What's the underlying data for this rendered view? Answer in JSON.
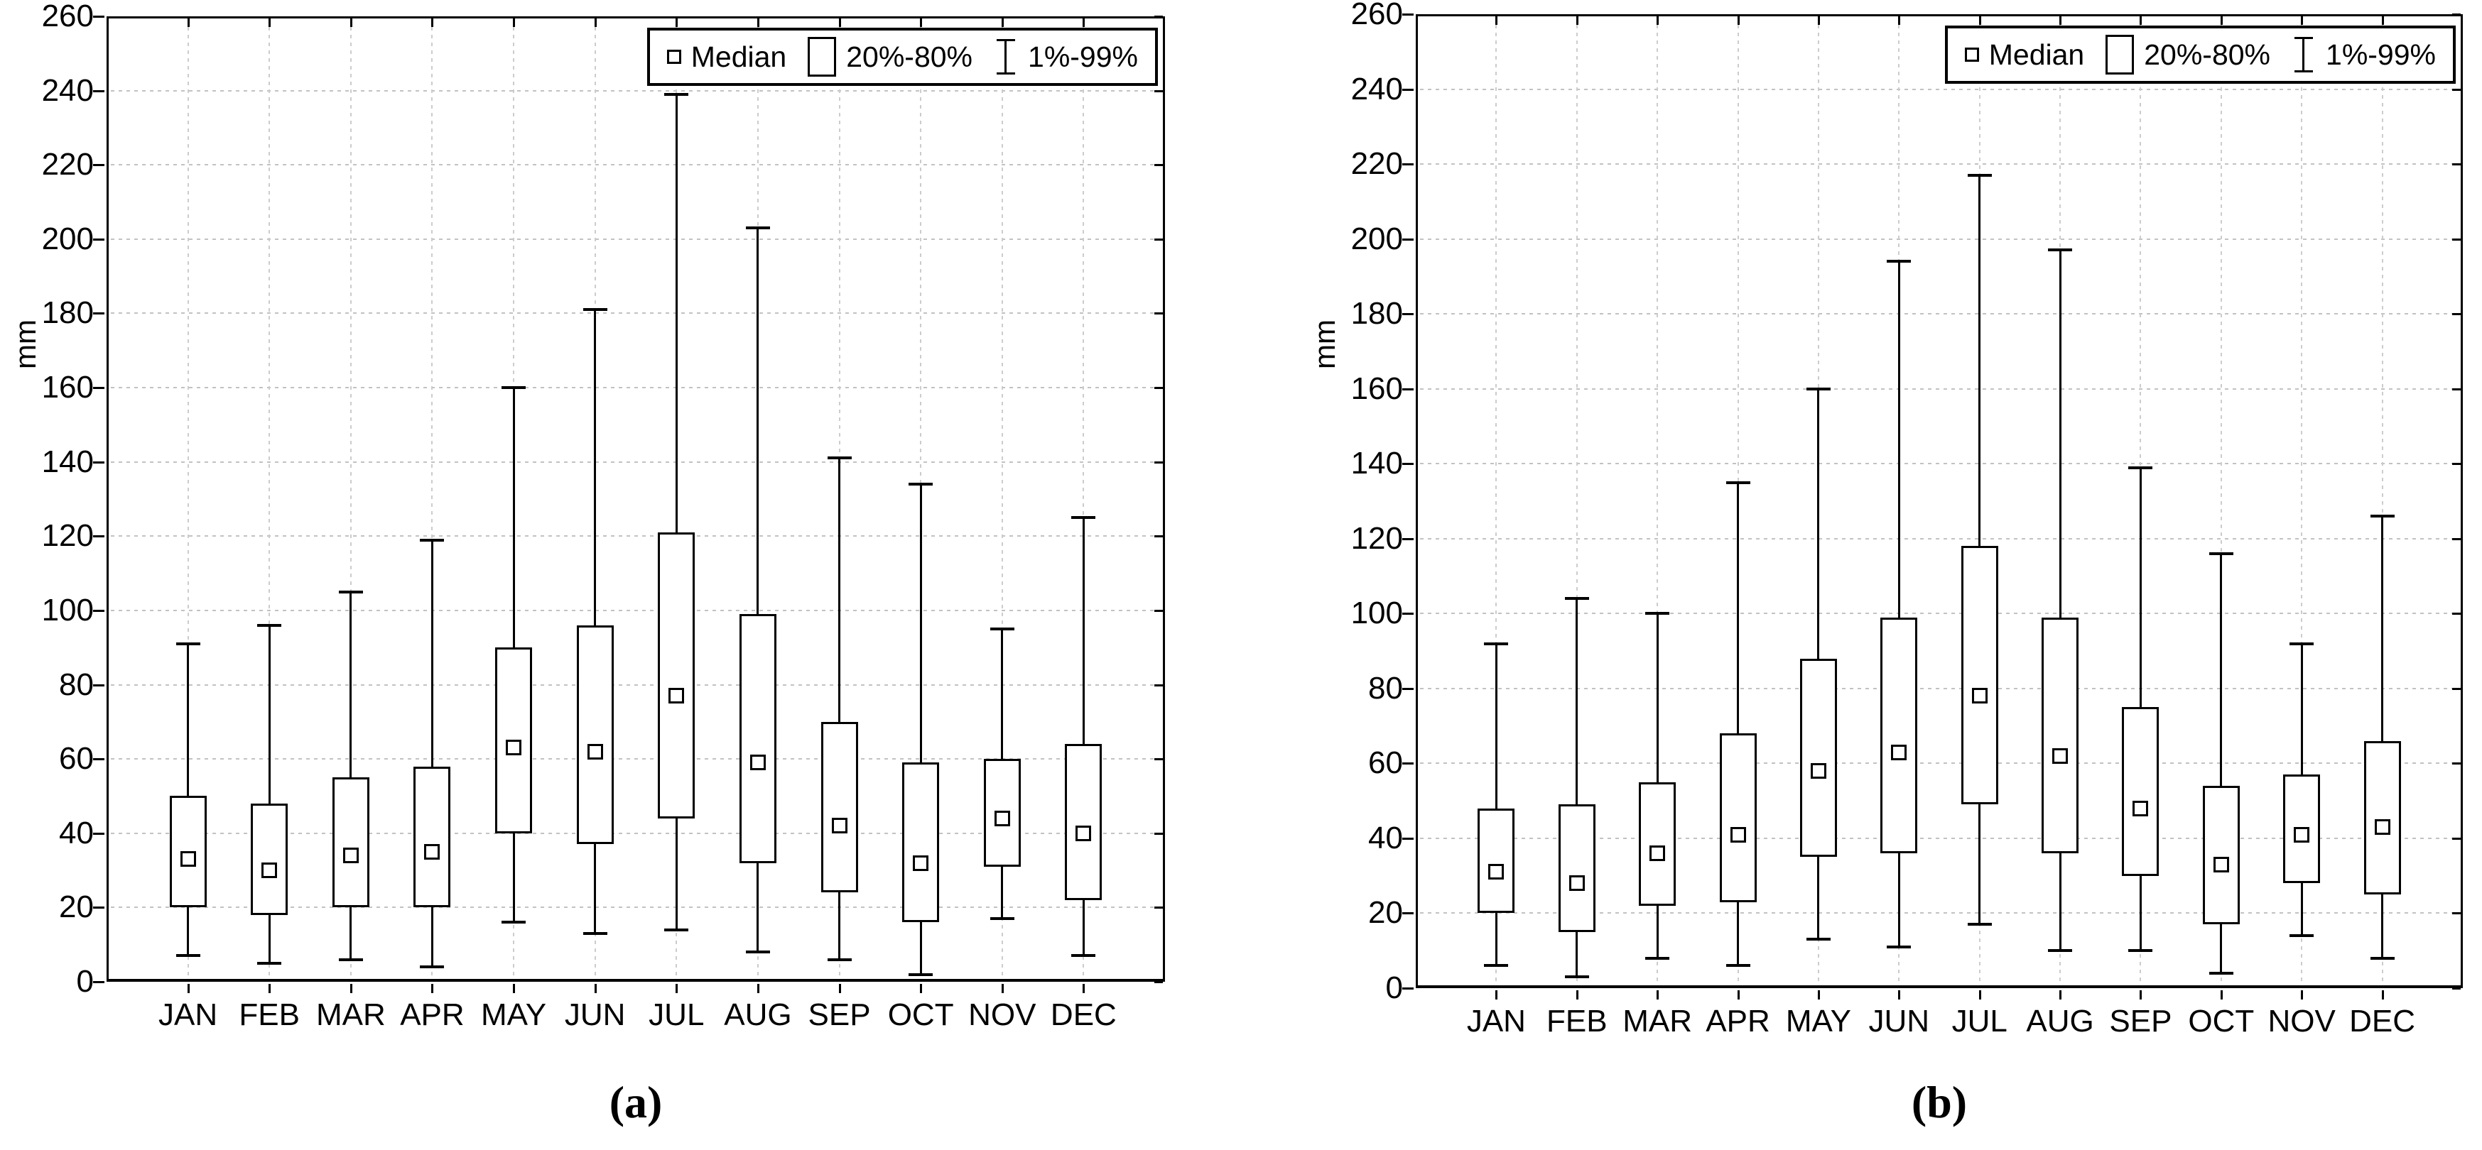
{
  "figure_captions": [
    "(a)",
    "(b)"
  ],
  "axis_unit": "mm",
  "legend": {
    "median_label": "Median",
    "box_label": "20%-80%",
    "whisker_label": "1%-99%"
  },
  "chart_data": [
    {
      "type": "boxplot",
      "caption": "(a)",
      "ylabel": "mm",
      "ylim": [
        0,
        260
      ],
      "ytick_step": 20,
      "grid": true,
      "legend_position": "top-right",
      "legend_entries": [
        "Median",
        "20%-80%",
        "1%-99%"
      ],
      "box_range": "20%-80%",
      "whisker_range": "1%-99%",
      "categories": [
        "JAN",
        "FEB",
        "MAR",
        "APR",
        "MAY",
        "JUN",
        "JUL",
        "AUG",
        "SEP",
        "OCT",
        "NOV",
        "DEC"
      ],
      "series": [
        {
          "month": "JAN",
          "p1": 7,
          "p20": 20,
          "median": 33,
          "p80": 50,
          "p99": 91
        },
        {
          "month": "FEB",
          "p1": 5,
          "p20": 18,
          "median": 30,
          "p80": 48,
          "p99": 96
        },
        {
          "month": "MAR",
          "p1": 6,
          "p20": 20,
          "median": 34,
          "p80": 55,
          "p99": 105
        },
        {
          "month": "APR",
          "p1": 4,
          "p20": 20,
          "median": 35,
          "p80": 58,
          "p99": 119
        },
        {
          "month": "MAY",
          "p1": 16,
          "p20": 40,
          "median": 63,
          "p80": 90,
          "p99": 160
        },
        {
          "month": "JUN",
          "p1": 13,
          "p20": 37,
          "median": 62,
          "p80": 96,
          "p99": 181
        },
        {
          "month": "JUL",
          "p1": 14,
          "p20": 44,
          "median": 77,
          "p80": 121,
          "p99": 239
        },
        {
          "month": "AUG",
          "p1": 8,
          "p20": 32,
          "median": 59,
          "p80": 99,
          "p99": 203
        },
        {
          "month": "SEP",
          "p1": 6,
          "p20": 24,
          "median": 42,
          "p80": 70,
          "p99": 141
        },
        {
          "month": "OCT",
          "p1": 2,
          "p20": 16,
          "median": 32,
          "p80": 59,
          "p99": 134
        },
        {
          "month": "NOV",
          "p1": 17,
          "p20": 31,
          "median": 44,
          "p80": 60,
          "p99": 95
        },
        {
          "month": "DEC",
          "p1": 7,
          "p20": 22,
          "median": 40,
          "p80": 64,
          "p99": 125
        }
      ]
    },
    {
      "type": "boxplot",
      "caption": "(b)",
      "ylabel": "mm",
      "ylim": [
        0,
        260
      ],
      "ytick_step": 20,
      "grid": true,
      "legend_position": "top-right",
      "legend_entries": [
        "Median",
        "20%-80%",
        "1%-99%"
      ],
      "box_range": "20%-80%",
      "whisker_range": "1%-99%",
      "categories": [
        "JAN",
        "FEB",
        "MAR",
        "APR",
        "MAY",
        "JUN",
        "JUL",
        "AUG",
        "SEP",
        "OCT",
        "NOV",
        "DEC"
      ],
      "series": [
        {
          "month": "JAN",
          "p1": 6,
          "p20": 20,
          "median": 31,
          "p80": 48,
          "p99": 92
        },
        {
          "month": "FEB",
          "p1": 3,
          "p20": 15,
          "median": 28,
          "p80": 49,
          "p99": 104
        },
        {
          "month": "MAR",
          "p1": 8,
          "p20": 22,
          "median": 36,
          "p80": 55,
          "p99": 100
        },
        {
          "month": "APR",
          "p1": 6,
          "p20": 23,
          "median": 41,
          "p80": 68,
          "p99": 135
        },
        {
          "month": "MAY",
          "p1": 13,
          "p20": 35,
          "median": 58,
          "p80": 88,
          "p99": 160
        },
        {
          "month": "JUN",
          "p1": 11,
          "p20": 36,
          "median": 63,
          "p80": 99,
          "p99": 194
        },
        {
          "month": "JUL",
          "p1": 17,
          "p20": 49,
          "median": 78,
          "p80": 118,
          "p99": 217
        },
        {
          "month": "AUG",
          "p1": 10,
          "p20": 36,
          "median": 62,
          "p80": 99,
          "p99": 197
        },
        {
          "month": "SEP",
          "p1": 10,
          "p20": 30,
          "median": 48,
          "p80": 75,
          "p99": 139
        },
        {
          "month": "OCT",
          "p1": 4,
          "p20": 17,
          "median": 33,
          "p80": 54,
          "p99": 116
        },
        {
          "month": "NOV",
          "p1": 14,
          "p20": 28,
          "median": 41,
          "p80": 57,
          "p99": 92
        },
        {
          "month": "DEC",
          "p1": 8,
          "p20": 25,
          "median": 43,
          "p80": 66,
          "p99": 126
        }
      ]
    }
  ]
}
